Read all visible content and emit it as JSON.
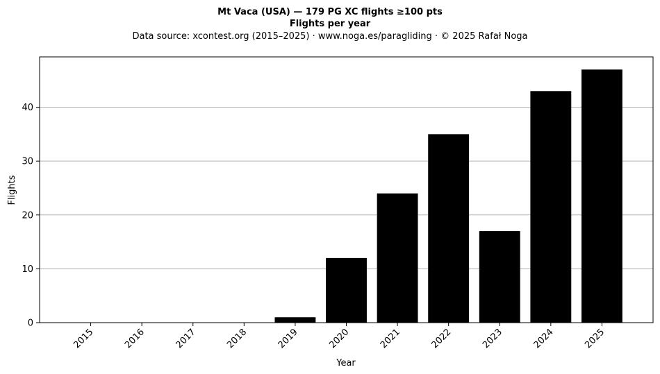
{
  "chart_data": {
    "type": "bar",
    "title": "Mt Vaca (USA)  —  179 PG XC flights ≥100 pts",
    "subtitle": "Flights per year",
    "source_line": "Data source: xcontest.org (2015–2025)  ·  www.noga.es/paragliding  ·  © 2025 Rafał Noga",
    "xlabel": "Year",
    "ylabel": "Flights",
    "categories": [
      "2015",
      "2016",
      "2017",
      "2018",
      "2019",
      "2020",
      "2021",
      "2022",
      "2023",
      "2024",
      "2025"
    ],
    "values": [
      0,
      0,
      0,
      0,
      1,
      12,
      24,
      35,
      17,
      43,
      47
    ],
    "ylim": [
      0,
      49.35
    ],
    "yticks": [
      0,
      10,
      20,
      30,
      40
    ],
    "grid": "horizontal",
    "bar_color": "#000000",
    "grid_color": "#b0b0b0"
  }
}
